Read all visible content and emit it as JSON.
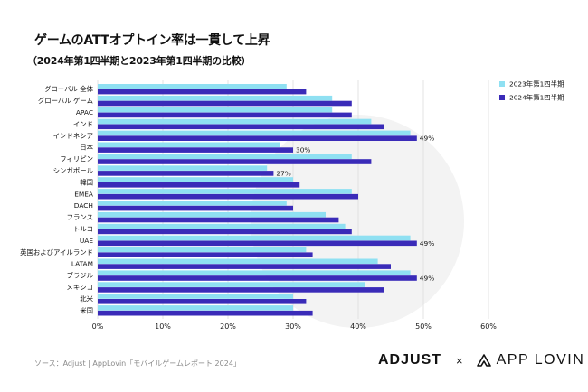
{
  "header": {
    "title": "ゲームのATTオプトイン率は一貫して上昇",
    "subtitle": "（2024年第1四半期と2023年第1四半期の比較）"
  },
  "footer": {
    "source": "ソース：Adjust | AppLovin「モバイルゲームレポート 2024」",
    "logo_adjust": "ADJUST",
    "logo_separator": "×",
    "logo_applovin": "APP LOVIN"
  },
  "colors": {
    "series_2023": "#8fe0f2",
    "series_2024": "#3a2bb8",
    "watermark": "#f3f3f3"
  },
  "chart_data": {
    "type": "bar",
    "orientation": "horizontal",
    "categories": [
      "グローバル 全体",
      "グローバル ゲーム",
      "APAC",
      "インド",
      "インドネシア",
      "日本",
      "フィリピン",
      "シンガポール",
      "韓国",
      "EMEA",
      "DACH",
      "フランス",
      "トルコ",
      "UAE",
      "英国およびアイルランド",
      "LATAM",
      "ブラジル",
      "メキシコ",
      "北米",
      "米国"
    ],
    "series": [
      {
        "name": "2023年第1四半期",
        "values": [
          29,
          36,
          36,
          42,
          48,
          28,
          39,
          26,
          30,
          39,
          29,
          35,
          38,
          48,
          32,
          43,
          48,
          41,
          30,
          30
        ]
      },
      {
        "name": "2024年第1四半期",
        "values": [
          32,
          39,
          39,
          44,
          49,
          30,
          42,
          27,
          31,
          40,
          30,
          37,
          39,
          49,
          33,
          45,
          49,
          44,
          32,
          33
        ]
      }
    ],
    "data_labels": [
      {
        "category": "インドネシア",
        "series": "2024年第1四半期",
        "text": "49%"
      },
      {
        "category": "日本",
        "series": "2024年第1四半期",
        "text": "30%"
      },
      {
        "category": "シンガポール",
        "series": "2024年第1四半期",
        "text": "27%"
      },
      {
        "category": "UAE",
        "series": "2024年第1四半期",
        "text": "49%"
      },
      {
        "category": "ブラジル",
        "series": "2024年第1四半期",
        "text": "49%"
      }
    ],
    "x_ticks": [
      "0%",
      "10%",
      "20%",
      "30%",
      "40%",
      "50%",
      "60%"
    ],
    "x_tick_values": [
      0,
      10,
      20,
      30,
      40,
      50,
      60
    ],
    "xlim": [
      0,
      60
    ],
    "xlabel": "",
    "ylabel": "",
    "grid": true,
    "legend_position": "top-right"
  }
}
